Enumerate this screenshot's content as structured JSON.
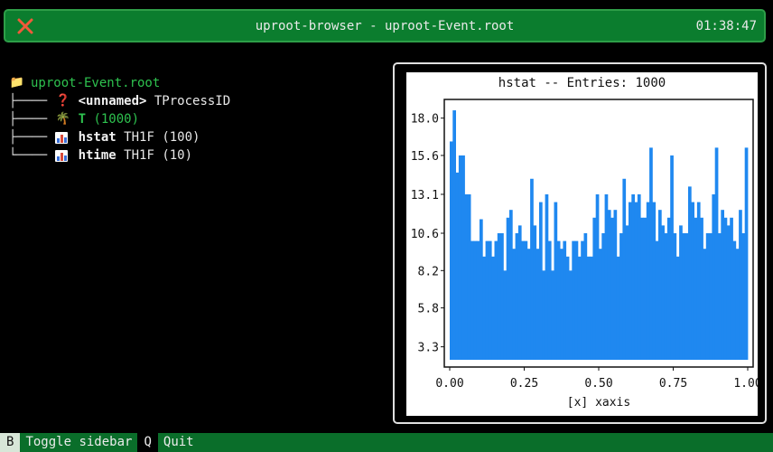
{
  "header": {
    "title": "uproot-browser - uproot-Event.root",
    "clock": "01:38:47"
  },
  "tree": {
    "root": "uproot-Event.root",
    "children": [
      {
        "name": "<unnamed>",
        "type": "TProcessID",
        "icon": "question-icon"
      },
      {
        "name": "T",
        "type": "(1000)",
        "icon": "palm-tree-icon"
      },
      {
        "name": "hstat",
        "type": "TH1F (100)",
        "icon": "histogram-icon"
      },
      {
        "name": "htime",
        "type": "TH1F (10)",
        "icon": "histogram-icon"
      }
    ]
  },
  "chart_data": {
    "type": "bar",
    "title": "hstat -- Entries: 1000",
    "xlabel": "[x] xaxis",
    "ylabel": "",
    "xlim": [
      0.0,
      1.0
    ],
    "ylim": [
      2.0,
      19.2
    ],
    "x_ticks": [
      "0.00",
      "0.25",
      "0.50",
      "0.75",
      "1.00"
    ],
    "y_ticks": [
      "3.3",
      "5.8",
      "8.2",
      "10.6",
      "13.1",
      "15.6",
      "18.0"
    ],
    "color": "#1f88f0",
    "values": [
      16.5,
      18.5,
      14.5,
      15.6,
      15.6,
      13.1,
      13.1,
      10.1,
      10.1,
      10.1,
      11.5,
      9.1,
      10.1,
      10.1,
      9.1,
      10.1,
      10.6,
      10.6,
      8.2,
      11.6,
      12.1,
      9.6,
      10.6,
      11.1,
      10.1,
      10.1,
      9.6,
      14.1,
      11.1,
      9.6,
      12.6,
      8.2,
      13.1,
      10.1,
      8.2,
      12.6,
      10.1,
      9.6,
      10.1,
      9.1,
      8.2,
      10.1,
      10.1,
      9.1,
      10.1,
      10.6,
      9.1,
      9.1,
      11.6,
      13.1,
      9.6,
      10.6,
      13.1,
      12.1,
      11.6,
      12.1,
      9.1,
      10.6,
      14.1,
      11.1,
      12.6,
      13.1,
      12.6,
      13.1,
      11.6,
      11.6,
      12.6,
      16.1,
      12.6,
      10.1,
      12.1,
      11.1,
      10.6,
      11.6,
      15.6,
      10.6,
      9.1,
      11.1,
      10.6,
      10.6,
      13.6,
      12.6,
      11.6,
      12.6,
      11.6,
      9.6,
      10.6,
      10.6,
      13.1,
      16.1,
      10.6,
      12.1,
      11.6,
      11.1,
      11.6,
      10.1,
      9.6,
      12.1,
      10.6,
      16.1
    ]
  },
  "statusbar": {
    "items": [
      {
        "key": "B",
        "label": "Toggle sidebar"
      },
      {
        "key": "Q",
        "label": "Quit"
      }
    ]
  }
}
